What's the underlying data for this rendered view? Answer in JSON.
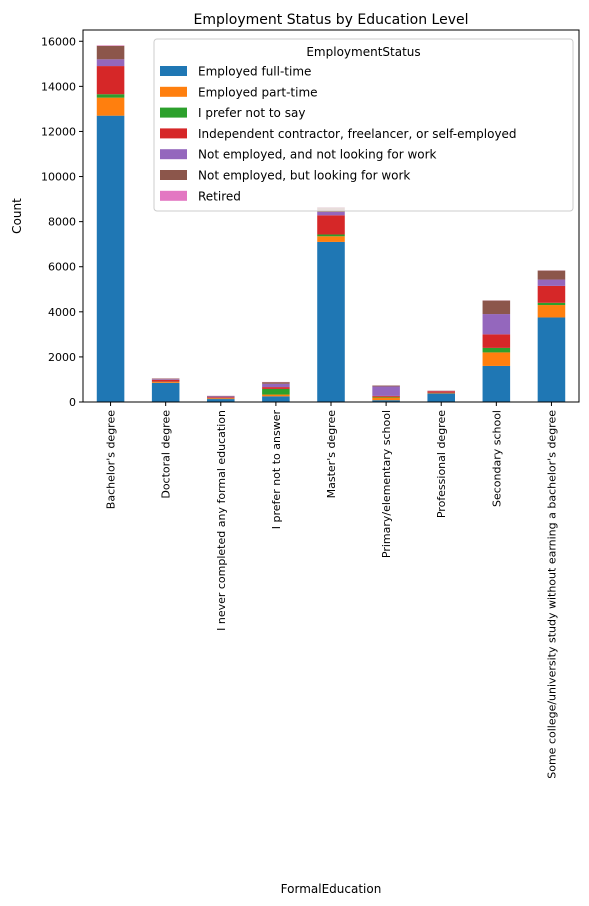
{
  "chart_data": {
    "type": "bar",
    "stacked": true,
    "title": "Employment Status by Education Level",
    "xlabel": "FormalEducation",
    "ylabel": "Count",
    "ylim": [
      0,
      16500
    ],
    "yticks": [
      0,
      2000,
      4000,
      6000,
      8000,
      10000,
      12000,
      14000,
      16000
    ],
    "grid": false,
    "legend": {
      "title": "EmploymentStatus",
      "placement": "top-right"
    },
    "categories": [
      "Bachelor's degree",
      "Doctoral degree",
      "I never completed any formal education",
      "I prefer not to answer",
      "Master's degree",
      "Primary/elementary school",
      "Professional degree",
      "Secondary school",
      "Some college/university study without earning a bachelor's degree"
    ],
    "series": [
      {
        "name": "Employed full-time",
        "color": "#1f77b4",
        "values": [
          12700,
          850,
          130,
          250,
          7100,
          80,
          380,
          1600,
          3750
        ]
      },
      {
        "name": "Employed part-time",
        "color": "#ff7f0e",
        "values": [
          800,
          40,
          30,
          80,
          250,
          120,
          20,
          600,
          550
        ]
      },
      {
        "name": "I prefer not to say",
        "color": "#2ca02c",
        "values": [
          150,
          10,
          10,
          250,
          80,
          30,
          10,
          200,
          100
        ]
      },
      {
        "name": "Independent contractor, freelancer, or self-employed",
        "color": "#d62728",
        "values": [
          1250,
          80,
          40,
          80,
          850,
          40,
          70,
          600,
          750
        ]
      },
      {
        "name": "Not employed, and not looking for work",
        "color": "#9467bd",
        "values": [
          300,
          30,
          40,
          150,
          150,
          420,
          10,
          900,
          280
        ]
      },
      {
        "name": "Not employed, but looking for work",
        "color": "#8c564b",
        "values": [
          600,
          30,
          20,
          70,
          200,
          40,
          10,
          600,
          400
        ]
      },
      {
        "name": "Retired",
        "color": "#e377c2",
        "values": [
          20,
          5,
          5,
          10,
          15,
          0,
          2,
          5,
          5
        ]
      }
    ]
  }
}
